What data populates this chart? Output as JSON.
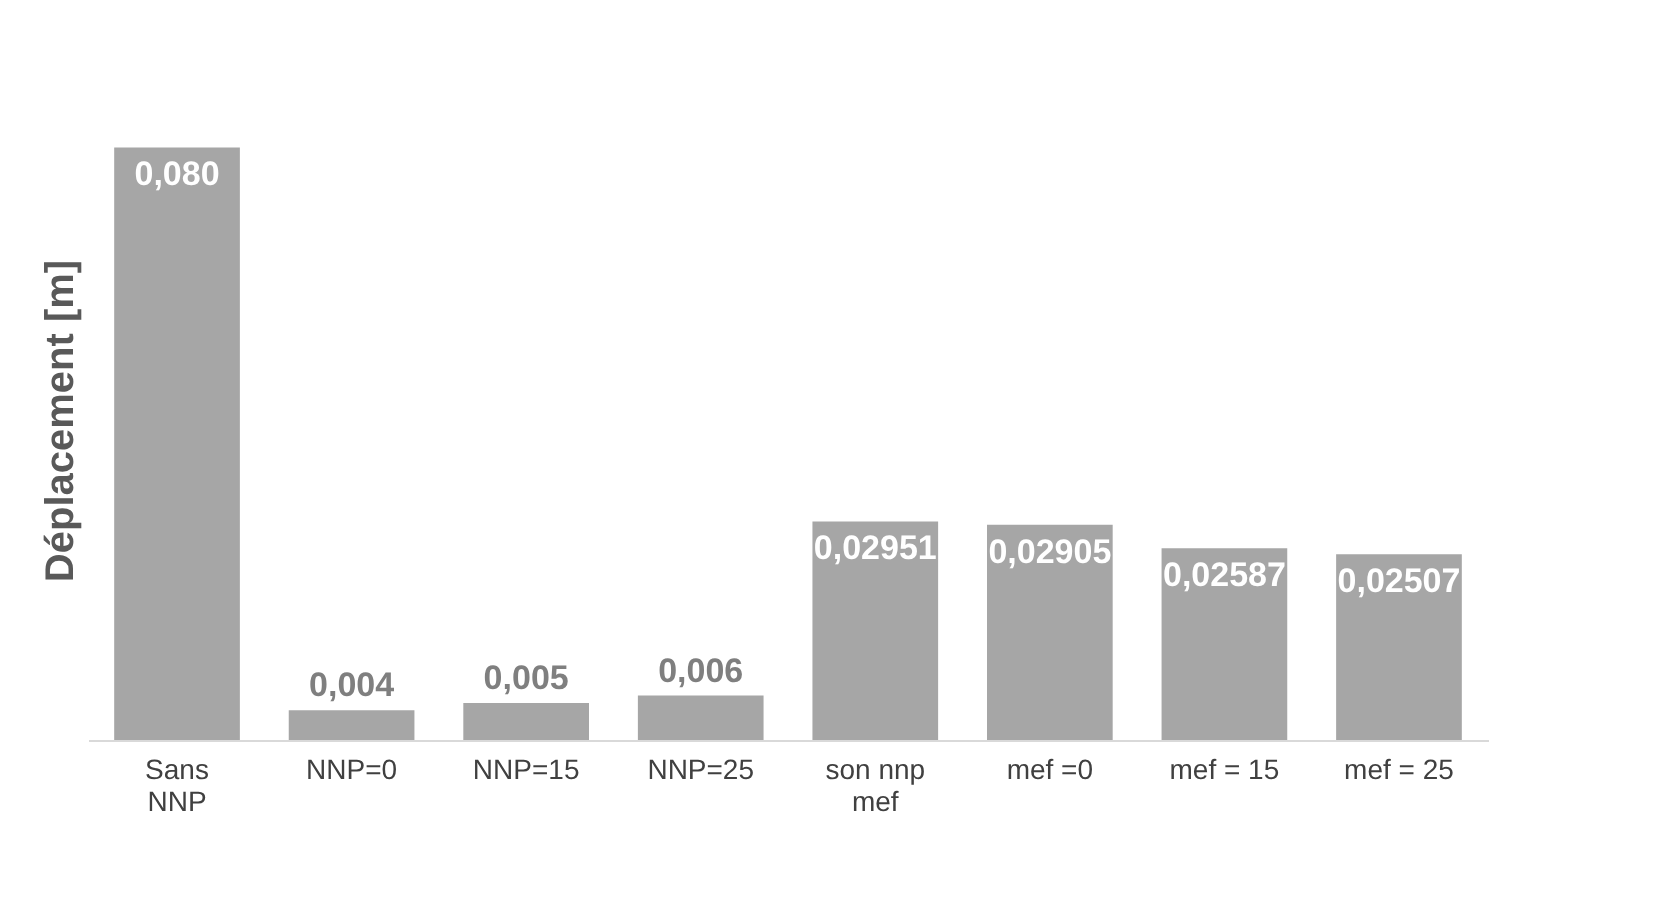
{
  "chart_data": {
    "type": "bar",
    "ylabel": "Déplacement [m]",
    "categories": [
      "Sans NNP",
      "NNP=0",
      "NNP=15",
      "NNP=25",
      "son nnp mef",
      "mef =0",
      "mef = 15",
      "mef = 25"
    ],
    "values": [
      0.08,
      0.004,
      0.005,
      0.006,
      0.02951,
      0.02905,
      0.02587,
      0.02507
    ],
    "value_labels": [
      "0,080",
      "0,004",
      "0,005",
      "0,006",
      "0,02951",
      "0,02905",
      "0,02587",
      "0,02507"
    ],
    "color": "#a6a6a6",
    "grid": false
  }
}
